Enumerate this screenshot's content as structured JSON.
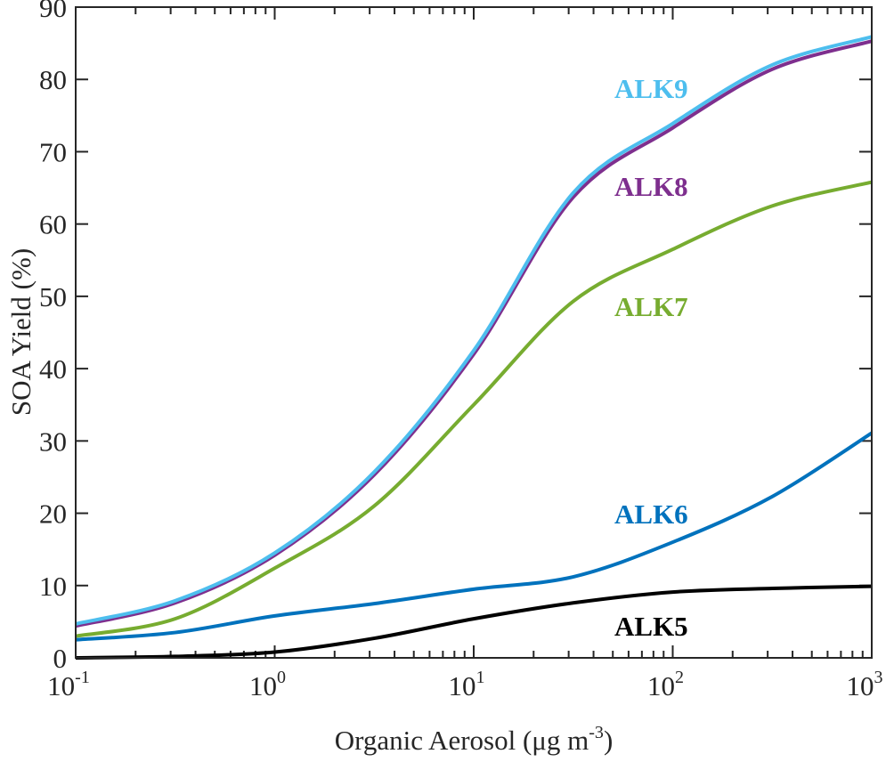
{
  "chart_data": {
    "type": "line",
    "title": "",
    "xlabel": "Organic Aerosol (μg m",
    "xlabel_sup": "-3",
    "xlabel_close": ")",
    "ylabel": "SOA Yield (%)",
    "xscale": "log",
    "xlim": [
      0.1,
      1000
    ],
    "ylim": [
      0,
      90
    ],
    "grid": false,
    "legend": "inline labels at right",
    "x_ticks": [
      {
        "base": "10",
        "exp": "-1",
        "value": 0.1
      },
      {
        "base": "10",
        "exp": "0",
        "value": 1
      },
      {
        "base": "10",
        "exp": "1",
        "value": 10
      },
      {
        "base": "10",
        "exp": "2",
        "value": 100
      },
      {
        "base": "10",
        "exp": "3",
        "value": 1000
      }
    ],
    "y_ticks": [
      "0",
      "10",
      "20",
      "30",
      "40",
      "50",
      "60",
      "70",
      "80",
      "90"
    ],
    "x": [
      0.1,
      0.316,
      1,
      3.16,
      10,
      31.6,
      100,
      316,
      1000
    ],
    "series": [
      {
        "name": "ALK9",
        "color": "#4DBEEE",
        "values": [
          4.7,
          7.9,
          14.5,
          25.7,
          42.5,
          64.3,
          73.9,
          82.0,
          85.9
        ]
      },
      {
        "name": "ALK8",
        "color": "#7E2F8E",
        "values": [
          4.4,
          7.6,
          14.2,
          25.3,
          42.0,
          63.7,
          73.3,
          81.4,
          85.3
        ]
      },
      {
        "name": "ALK7",
        "color": "#77AC30",
        "values": [
          3.0,
          5.4,
          12.4,
          21.0,
          35.0,
          49.3,
          56.5,
          62.5,
          65.8
        ]
      },
      {
        "name": "ALK6",
        "color": "#0072BD",
        "values": [
          2.5,
          3.5,
          5.8,
          7.5,
          9.5,
          11.2,
          16.0,
          22.3,
          31.1
        ]
      },
      {
        "name": "ALK5",
        "color": "#000000",
        "values": [
          0.0,
          0.2,
          0.8,
          2.7,
          5.4,
          7.6,
          9.1,
          9.6,
          9.9
        ]
      }
    ]
  }
}
